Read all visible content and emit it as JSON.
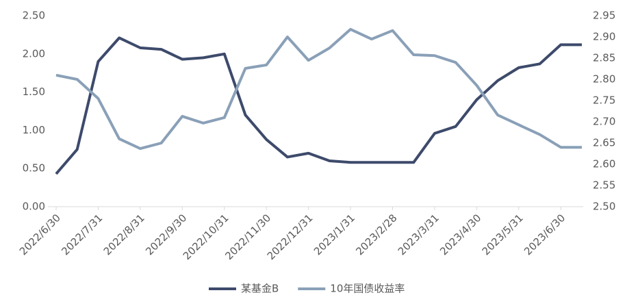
{
  "chart_data": {
    "type": "line",
    "categories": [
      "2022/6/30",
      null,
      "2022/7/31",
      null,
      "2022/8/31",
      null,
      "2022/9/30",
      null,
      "2022/10/31",
      null,
      "2022/11/30",
      null,
      "2022/12/31",
      null,
      "2023/1/31",
      null,
      "2023/2/28",
      null,
      "2023/3/31",
      null,
      "2023/4/30",
      null,
      "2023/5/31",
      null,
      "2023/6/30",
      null
    ],
    "series": [
      {
        "name": "某基金B",
        "color": "#3d4a6b",
        "values": [
          0.43,
          0.75,
          1.9,
          2.21,
          2.08,
          2.06,
          1.93,
          1.95,
          2.0,
          1.2,
          0.88,
          0.65,
          0.7,
          0.6,
          0.58,
          0.58,
          0.58,
          0.58,
          0.96,
          1.05,
          1.4,
          1.65,
          1.82,
          1.87,
          2.12,
          2.12
        ]
      },
      {
        "name": "10年国债收益率",
        "color": "#8aa0b8",
        "axis": "y2",
        "values": [
          2.81,
          2.8,
          2.755,
          2.66,
          2.637,
          2.65,
          2.713,
          2.697,
          2.71,
          2.826,
          2.834,
          2.9,
          2.845,
          2.874,
          2.918,
          2.895,
          2.915,
          2.858,
          2.856,
          2.84,
          2.786,
          2.716,
          2.693,
          2.67,
          2.64,
          2.64
        ]
      }
    ],
    "ylim": [
      0,
      2.5
    ],
    "yticks": [
      {
        "value": 0,
        "label": "0.00"
      },
      {
        "value": 0.5,
        "label": "0.50"
      },
      {
        "value": 1,
        "label": "1.00"
      },
      {
        "value": 1.5,
        "label": "1.50"
      },
      {
        "value": 2,
        "label": "2.00"
      },
      {
        "value": 2.5,
        "label": "2.50"
      }
    ],
    "y2lim": [
      2.5,
      2.95
    ],
    "y2ticks": [
      {
        "value": 2.5,
        "label": "2.50"
      },
      2.55,
      {
        "value": 2.6,
        "label": "2.60"
      },
      2.65,
      {
        "value": 2.7,
        "label": "2.70"
      },
      2.75,
      {
        "value": 2.8,
        "label": "2.80"
      },
      2.85,
      {
        "value": 2.9,
        "label": "2.90"
      },
      2.95
    ],
    "grid": false,
    "legend": "bottom"
  }
}
